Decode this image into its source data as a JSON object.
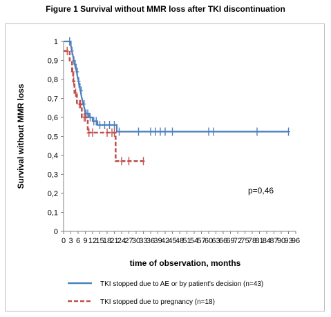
{
  "figure": {
    "title": "Figure 1  Survival without MMR loss after TKI discontinuation"
  },
  "chart_data": {
    "type": "line",
    "title": "Figure 1  Survival without MMR loss after TKI discontinuation",
    "xlabel": "time of observation, months",
    "ylabel": "Survival without MMR loss",
    "xlim": [
      0,
      96
    ],
    "ylim": [
      0,
      1
    ],
    "x_ticks": [
      "0",
      "3",
      "6",
      "9",
      "12",
      "15",
      "18",
      "21",
      "24",
      "27",
      "30",
      "33",
      "36",
      "39",
      "42",
      "45",
      "48",
      "51",
      "54",
      "57",
      "60",
      "63",
      "66",
      "69",
      "72",
      "75",
      "78",
      "81",
      "84",
      "87",
      "90",
      "93",
      "96"
    ],
    "y_ticks": [
      "0",
      "0,1",
      "0,2",
      "0,3",
      "0,4",
      "0,5",
      "0,6",
      "0,7",
      "0,8",
      "0,9",
      "1"
    ],
    "grid": false,
    "legend_position": "bottom",
    "annotation": "p=0,46",
    "series": [
      {
        "name": "TKI stopped due to AE or by patient's decision (n=43)",
        "color": "#4f81bd",
        "dash": "solid",
        "steps": [
          [
            0,
            1
          ],
          [
            3,
            1
          ],
          [
            3,
            0.98
          ],
          [
            3.4,
            0.95
          ],
          [
            3.8,
            0.93
          ],
          [
            4.2,
            0.9
          ],
          [
            4.6,
            0.88
          ],
          [
            5,
            0.86
          ],
          [
            5.4,
            0.84
          ],
          [
            5.8,
            0.81
          ],
          [
            6.2,
            0.79
          ],
          [
            6.6,
            0.76
          ],
          [
            7,
            0.74
          ],
          [
            7.4,
            0.71
          ],
          [
            7.8,
            0.69
          ],
          [
            8.2,
            0.67
          ],
          [
            8.6,
            0.65
          ],
          [
            9,
            0.62
          ],
          [
            10.5,
            0.62
          ],
          [
            10.5,
            0.6
          ],
          [
            12,
            0.6
          ],
          [
            12,
            0.58
          ],
          [
            14,
            0.58
          ],
          [
            14,
            0.56
          ],
          [
            22,
            0.56
          ],
          [
            22,
            0.525
          ],
          [
            93,
            0.525
          ]
        ],
        "censored": [
          2.5,
          3.5,
          4.3,
          4.8,
          5.2,
          5.7,
          6.3,
          6.8,
          7.3,
          8.5,
          9.3,
          10,
          11,
          12.5,
          13.5,
          15,
          17,
          19,
          21,
          23,
          31,
          36,
          38,
          40,
          42,
          45,
          60,
          62,
          80,
          93
        ]
      },
      {
        "name": "TKI stopped due to pregnancy (n=18)",
        "color": "#c0504d",
        "dash": "dashed",
        "steps": [
          [
            0,
            0.95
          ],
          [
            2.5,
            0.95
          ],
          [
            2.5,
            0.9
          ],
          [
            3.5,
            0.9
          ],
          [
            3.5,
            0.84
          ],
          [
            4,
            0.84
          ],
          [
            4,
            0.79
          ],
          [
            4.5,
            0.79
          ],
          [
            4.5,
            0.73
          ],
          [
            5.5,
            0.73
          ],
          [
            5.5,
            0.67
          ],
          [
            7.5,
            0.67
          ],
          [
            7.5,
            0.6
          ],
          [
            10,
            0.6
          ],
          [
            10,
            0.52
          ],
          [
            21.5,
            0.52
          ],
          [
            21.5,
            0.37
          ],
          [
            33,
            0.37
          ]
        ],
        "censored": [
          1.5,
          3.8,
          4.2,
          5,
          6.5,
          7,
          8.5,
          9,
          10.5,
          12,
          18,
          20,
          21,
          24,
          27,
          33
        ]
      }
    ]
  }
}
